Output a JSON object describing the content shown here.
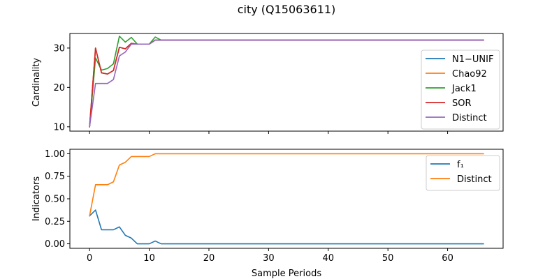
{
  "figure": {
    "title": "city (Q15063611)"
  },
  "colors": {
    "blue": "#1f77b4",
    "orange": "#ff7f0e",
    "green": "#2ca02c",
    "red": "#d62728",
    "purple": "#9467bd"
  },
  "chart_data": [
    {
      "type": "line",
      "ylabel": "Cardinality",
      "xlabel": "",
      "xlim": [
        -3.3,
        69.3
      ],
      "ylim": [
        8.9,
        33.7
      ],
      "xticks": [
        0,
        10,
        20,
        30,
        40,
        50,
        60
      ],
      "yticks": [
        10,
        20,
        30
      ],
      "show_xtick_labels": false,
      "legend_position": "right",
      "series": [
        {
          "name": "N1−UNIF",
          "color": "#1f77b4",
          "x": [
            0,
            1,
            2,
            3,
            4,
            5,
            6,
            7,
            8,
            9,
            10,
            11,
            12,
            66
          ],
          "y": [
            10,
            30,
            23.7,
            23.4,
            24.3,
            30.2,
            29.8,
            31.2,
            31,
            31,
            31,
            32,
            32,
            32
          ]
        },
        {
          "name": "Chao92",
          "color": "#ff7f0e",
          "x": [
            0,
            1,
            2,
            3,
            4,
            5,
            6,
            7,
            8,
            9,
            10,
            11,
            12,
            66
          ],
          "y": [
            10,
            30,
            23.7,
            23.4,
            24.3,
            30.2,
            29.8,
            31.2,
            31,
            31,
            31,
            32,
            32,
            32
          ]
        },
        {
          "name": "Jack1",
          "color": "#2ca02c",
          "x": [
            0,
            1,
            2,
            3,
            4,
            5,
            6,
            7,
            8,
            9,
            10,
            11,
            12,
            66
          ],
          "y": [
            10,
            27.5,
            24.4,
            24.8,
            26,
            33,
            31.5,
            32.7,
            31,
            31,
            31,
            32.8,
            32,
            32
          ]
        },
        {
          "name": "SOR",
          "color": "#d62728",
          "x": [
            0,
            1,
            2,
            3,
            4,
            5,
            6,
            7,
            8,
            9,
            10,
            11,
            12,
            66
          ],
          "y": [
            10,
            30,
            23.7,
            23.4,
            24.3,
            30.2,
            29.8,
            31.2,
            31,
            31,
            31,
            32,
            32,
            32
          ]
        },
        {
          "name": "Distinct",
          "color": "#9467bd",
          "x": [
            0,
            1,
            2,
            3,
            4,
            5,
            6,
            7,
            8,
            9,
            10,
            11,
            12,
            66
          ],
          "y": [
            10,
            21,
            21,
            21,
            22,
            28,
            29,
            31,
            31,
            31,
            31,
            32,
            32,
            32
          ]
        }
      ]
    },
    {
      "type": "line",
      "ylabel": "Indicators",
      "xlabel": "Sample Periods",
      "xlim": [
        -3.3,
        69.3
      ],
      "ylim": [
        -0.05,
        1.05
      ],
      "xticks": [
        0,
        10,
        20,
        30,
        40,
        50,
        60
      ],
      "yticks": [
        0.0,
        0.25,
        0.5,
        0.75,
        1.0
      ],
      "ytick_labels": [
        "0.00",
        "0.25",
        "0.50",
        "0.75",
        "1.00"
      ],
      "show_xtick_labels": true,
      "legend_position": "upper right",
      "series": [
        {
          "name": "f₁",
          "color": "#1f77b4",
          "x": [
            0,
            1,
            2,
            3,
            4,
            5,
            6,
            7,
            8,
            9,
            10,
            11,
            12,
            66
          ],
          "y": [
            0.31,
            0.375,
            0.156,
            0.156,
            0.156,
            0.188,
            0.094,
            0.063,
            0,
            0,
            0,
            0.031,
            0,
            0
          ]
        },
        {
          "name": "Distinct",
          "color": "#ff7f0e",
          "x": [
            0,
            1,
            2,
            3,
            4,
            5,
            6,
            7,
            8,
            9,
            10,
            11,
            12,
            66
          ],
          "y": [
            0.31,
            0.656,
            0.656,
            0.656,
            0.688,
            0.875,
            0.906,
            0.969,
            0.969,
            0.969,
            0.969,
            1.0,
            1.0,
            1.0
          ]
        }
      ]
    }
  ]
}
